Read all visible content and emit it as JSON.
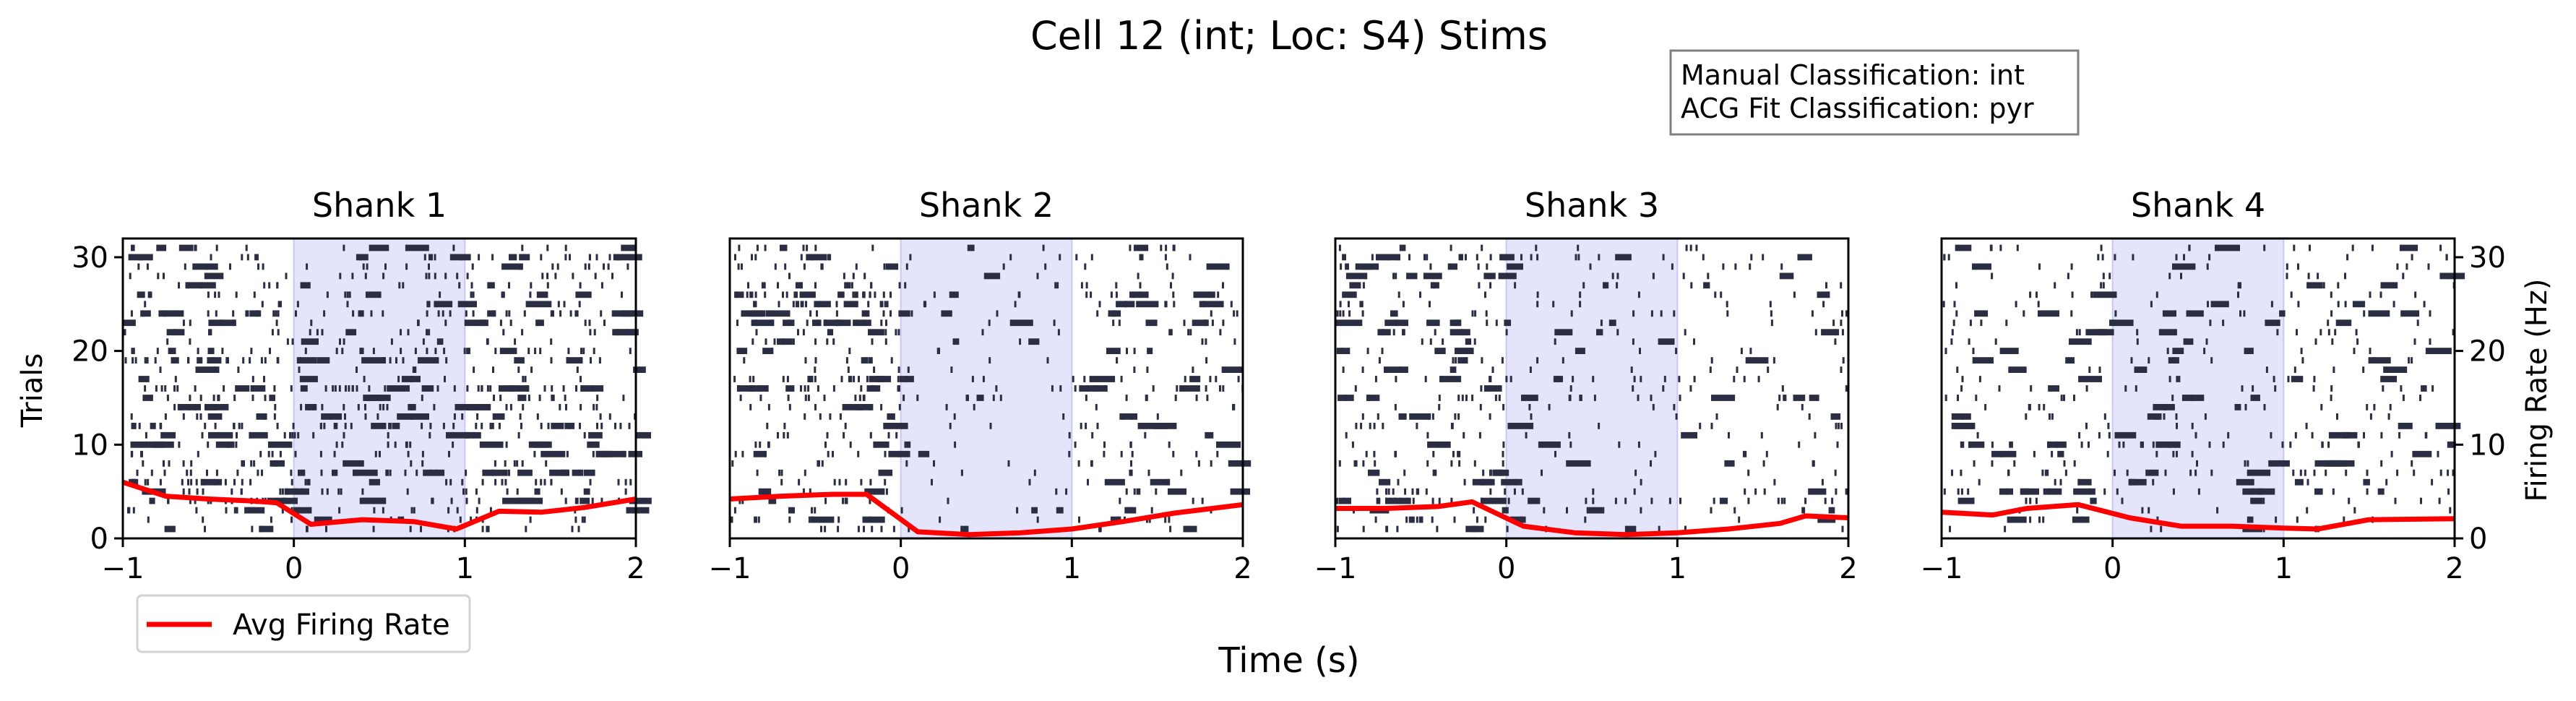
{
  "figure": {
    "title": "Cell 12 (int; Loc: S4) Stims",
    "xlabel": "Time (s)",
    "ylabel_left": "Trials",
    "ylabel_right": "Firing Rate (Hz)",
    "info_box": [
      "Manual Classification: int",
      "ACG Fit Classification: pyr"
    ],
    "legend_label": "Avg Firing Rate"
  },
  "colors": {
    "spike": "#2b2d42",
    "rate_line": "#ff0000",
    "stim_shade": "#e4e4fb",
    "stim_edge": "#c8c8f4"
  },
  "chart_data": [
    {
      "type": "raster+line",
      "title": "Shank 1",
      "xlim": [
        -1,
        2
      ],
      "ylim": [
        0,
        32
      ],
      "xticks": [
        -1,
        0,
        1,
        2
      ],
      "xtick_labels": [
        "−1",
        "0",
        "1",
        "2"
      ],
      "yticks": [
        0,
        10,
        20,
        30
      ],
      "ytick_labels": [
        "0",
        "10",
        "20",
        "30"
      ],
      "stim_window": [
        0,
        1
      ],
      "trials": 31,
      "spike_density": [
        0.9,
        0.65,
        0.75
      ],
      "series": [
        {
          "name": "Avg Firing Rate",
          "x": [
            -1.0,
            -0.75,
            -0.5,
            -0.25,
            -0.1,
            0.1,
            0.4,
            0.7,
            0.95,
            1.2,
            1.45,
            1.7,
            2.0
          ],
          "y": [
            6.0,
            4.5,
            4.2,
            4.0,
            3.8,
            1.5,
            2.0,
            1.8,
            1.0,
            2.9,
            2.8,
            3.3,
            4.2
          ]
        }
      ]
    },
    {
      "type": "raster+line",
      "title": "Shank 2",
      "xlim": [
        -1,
        2
      ],
      "ylim": [
        0,
        32
      ],
      "xticks": [
        -1,
        0,
        1,
        2
      ],
      "xtick_labels": [
        "−1",
        "0",
        "1",
        "2"
      ],
      "yticks": [
        0,
        10,
        20,
        30
      ],
      "ytick_labels": [
        "0",
        "10",
        "20",
        "30"
      ],
      "stim_window": [
        0,
        1
      ],
      "trials": 31,
      "spike_density": [
        0.9,
        0.25,
        0.55
      ],
      "series": [
        {
          "name": "Avg Firing Rate",
          "x": [
            -1.0,
            -0.7,
            -0.4,
            -0.2,
            0.1,
            0.4,
            0.7,
            1.0,
            1.3,
            1.6,
            2.0
          ],
          "y": [
            4.2,
            4.5,
            4.7,
            4.7,
            0.7,
            0.4,
            0.6,
            1.0,
            1.8,
            2.7,
            3.6
          ]
        }
      ]
    },
    {
      "type": "raster+line",
      "title": "Shank 3",
      "xlim": [
        -1,
        2
      ],
      "ylim": [
        0,
        32
      ],
      "xticks": [
        -1,
        0,
        1,
        2
      ],
      "xtick_labels": [
        "−1",
        "0",
        "1",
        "2"
      ],
      "yticks": [
        0,
        10,
        20,
        30
      ],
      "ytick_labels": [
        "0",
        "10",
        "20",
        "30"
      ],
      "stim_window": [
        0,
        1
      ],
      "trials": 31,
      "spike_density": [
        0.85,
        0.4,
        0.4
      ],
      "series": [
        {
          "name": "Avg Firing Rate",
          "x": [
            -1.0,
            -0.7,
            -0.4,
            -0.2,
            0.1,
            0.4,
            0.7,
            1.0,
            1.3,
            1.6,
            1.75,
            2.0
          ],
          "y": [
            3.2,
            3.2,
            3.4,
            3.9,
            1.3,
            0.6,
            0.4,
            0.6,
            1.0,
            1.6,
            2.4,
            2.2
          ]
        }
      ]
    },
    {
      "type": "raster+line",
      "title": "Shank 4",
      "xlim": [
        -1,
        2
      ],
      "ylim": [
        0,
        32
      ],
      "xticks": [
        -1,
        0,
        1,
        2
      ],
      "xtick_labels": [
        "−1",
        "0",
        "1",
        "2"
      ],
      "yticks": [
        0,
        10,
        20,
        30
      ],
      "ytick_labels": [
        "0",
        "10",
        "20",
        "30"
      ],
      "right_yticks": [
        0,
        10,
        20,
        30
      ],
      "right_ytick_labels": [
        "0",
        "10",
        "20",
        "30"
      ],
      "stim_window": [
        0,
        1
      ],
      "trials": 31,
      "spike_density": [
        0.5,
        0.45,
        0.5
      ],
      "series": [
        {
          "name": "Avg Firing Rate",
          "x": [
            -1.0,
            -0.7,
            -0.5,
            -0.2,
            0.1,
            0.4,
            0.7,
            1.0,
            1.2,
            1.5,
            2.0
          ],
          "y": [
            2.8,
            2.5,
            3.2,
            3.6,
            2.2,
            1.3,
            1.3,
            1.1,
            1.0,
            2.0,
            2.1
          ]
        }
      ]
    }
  ]
}
